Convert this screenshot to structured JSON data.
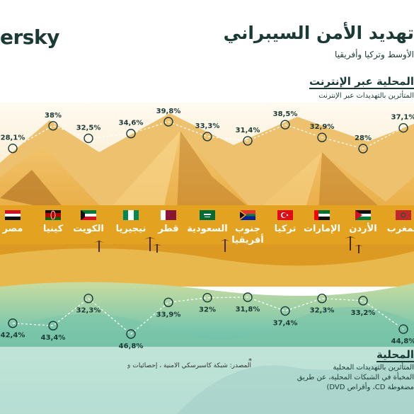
{
  "brand": {
    "logo_text": "ersky"
  },
  "header": {
    "title": "تهديد الأمن السيبراني",
    "subtitle": "الأوسط وتركيا وأفريقيا"
  },
  "online": {
    "title": "المحلية عبر الإنترنت",
    "subtitle": "المتأثرين بالتهديدات عبر الإنترنت"
  },
  "local": {
    "title": "المحلية",
    "lines": [
      "المتأثرين بالتهديدات المحلية",
      "المخبأة في الشبكات المحلية، عن طريق",
      "مضغوطة CD، وأقراص DVD)"
    ]
  },
  "source_note": "المصدر: شبكة كاسبرسكي الأمنية ، إحصائيات ي",
  "colors": {
    "line": "#ffffff",
    "text_dark": "#1b3a36",
    "sky": "#f3e6c8",
    "dune": "#e7ad36",
    "water": "#48b7a0"
  },
  "chart_data": [
    {
      "type": "line",
      "name": "online",
      "categories": [
        "مصر",
        "كينيا",
        "الكويت",
        "نيجيريا",
        "قطر",
        "السعودية",
        "جنوب أفريقيا",
        "تركيا",
        "الإمارات",
        "الأردن",
        "المغرب"
      ],
      "values": [
        28.1,
        38,
        32.5,
        34.6,
        39.8,
        33.3,
        31.4,
        38.5,
        32.9,
        28,
        37.1
      ],
      "labels": [
        "28,1%",
        "38%",
        "32,5%",
        "34,6%",
        "39,8%",
        "33,3%",
        "31,4%",
        "38,5%",
        "32,9%",
        "28%",
        "37,1%"
      ]
    },
    {
      "type": "line",
      "name": "local",
      "categories": [
        "مصر",
        "كينيا",
        "الكويت",
        "نيجيريا",
        "قطر",
        "السعودية",
        "جنوب أفريقيا",
        "تركيا",
        "الإمارات",
        "الأردن",
        "المغرب"
      ],
      "values": [
        42.4,
        43.4,
        32.3,
        46.8,
        33.9,
        32,
        31.8,
        37.4,
        32.3,
        33.2,
        44.8
      ],
      "labels": [
        "42,4%",
        "43,4%",
        "32,3%",
        "46,8%",
        "33,9%",
        "32%",
        "31,8%",
        "37,4%",
        "32,3%",
        "33,2%",
        "44,8%"
      ]
    }
  ],
  "countries": [
    {
      "name": "مصر",
      "flag": "egypt"
    },
    {
      "name": "كينيا",
      "flag": "kenya"
    },
    {
      "name": "الكويت",
      "flag": "kuwait"
    },
    {
      "name": "نيجيريا",
      "flag": "nigeria"
    },
    {
      "name": "قطر",
      "flag": "qatar"
    },
    {
      "name": "السعودية",
      "flag": "saudi-arabia"
    },
    {
      "name": "جنوب أفريقيا",
      "flag": "south-africa"
    },
    {
      "name": "تركيا",
      "flag": "turkey"
    },
    {
      "name": "الإمارات",
      "flag": "uae"
    },
    {
      "name": "الأردن",
      "flag": "jordan"
    },
    {
      "name": "المغرب",
      "flag": "morocco"
    }
  ]
}
